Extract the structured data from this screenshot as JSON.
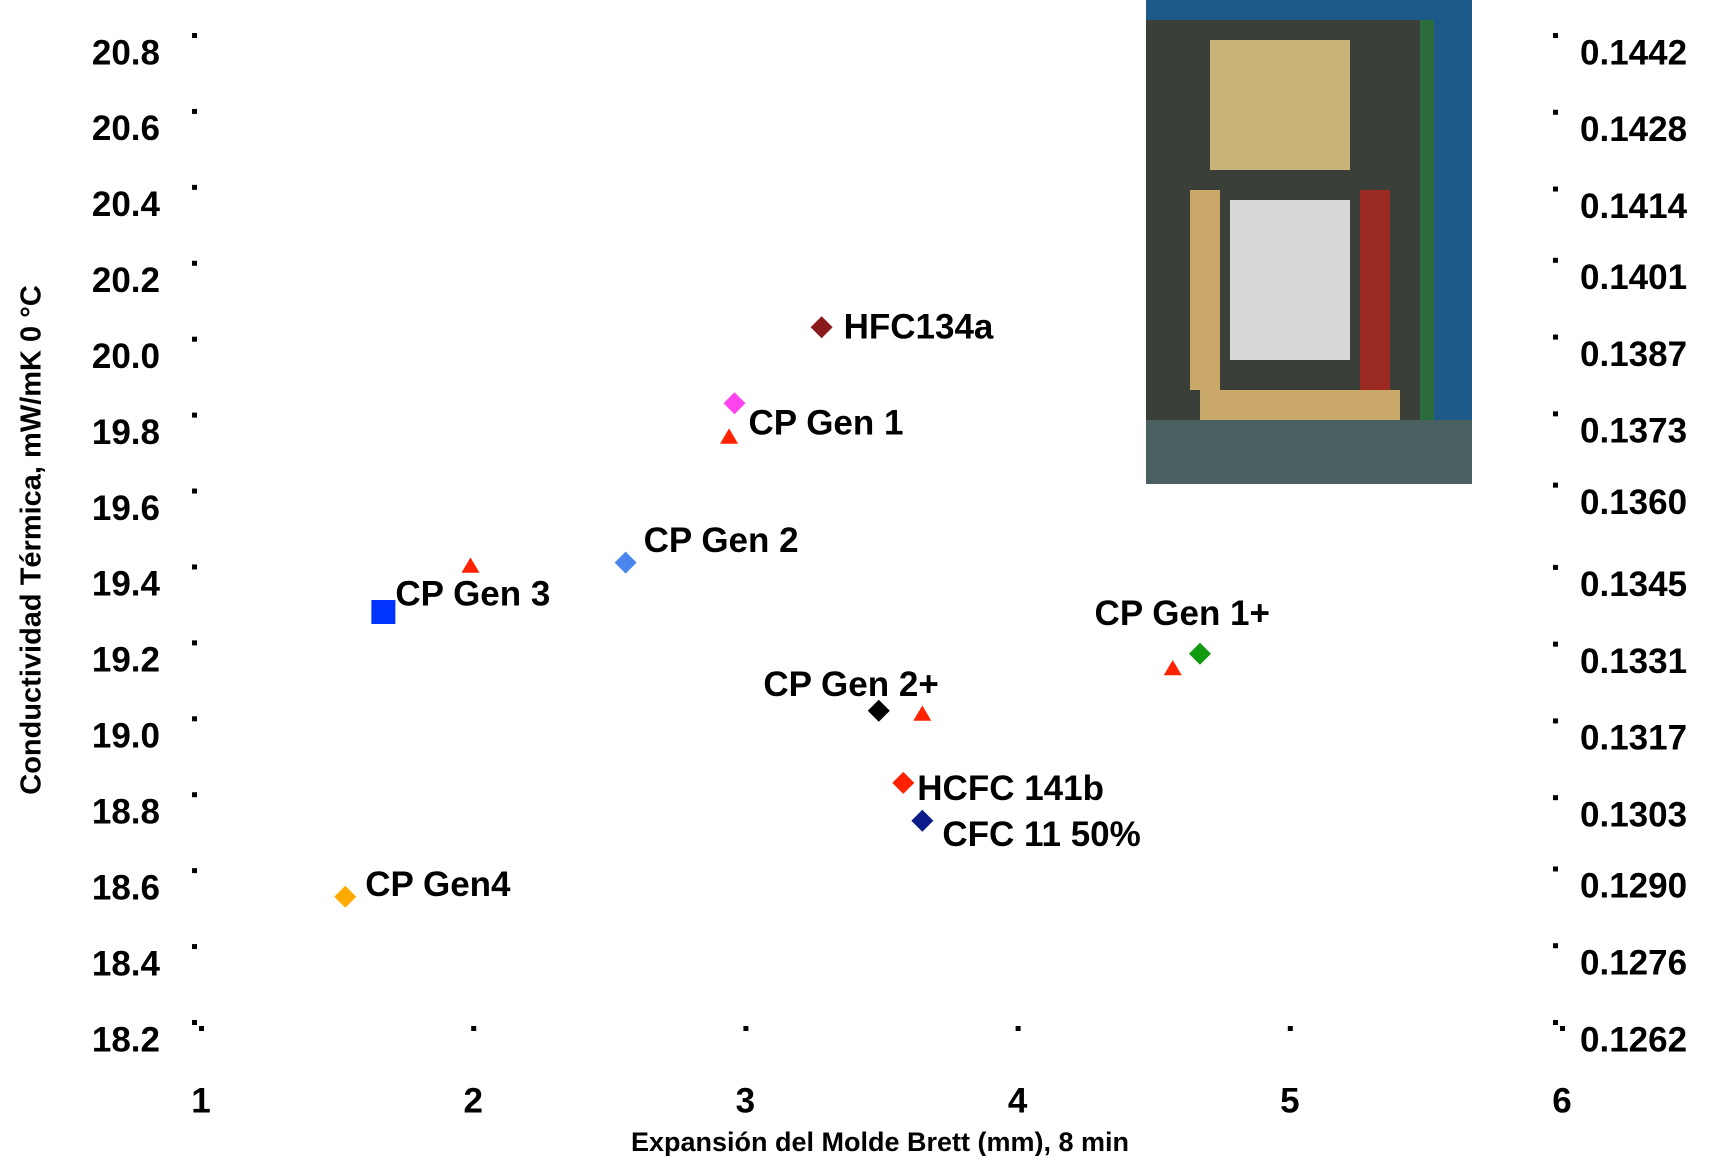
{
  "chart_data": {
    "type": "scatter",
    "xlabel": "Expansión del Molde Brett (mm), 8 min",
    "ylabel": "Conductividad Térmica, mW/mK 0 °C",
    "xlim": [
      1,
      6
    ],
    "xticks": [
      1,
      2,
      3,
      4,
      5,
      6
    ],
    "ylim": [
      18.2,
      20.8
    ],
    "yticks": [
      {
        "value": 18.2,
        "label": "18.2"
      },
      {
        "value": 18.4,
        "label": "18.4"
      },
      {
        "value": 18.6,
        "label": "18.6"
      },
      {
        "value": 18.8,
        "label": "18.8"
      },
      {
        "value": 19.0,
        "label": "19.0"
      },
      {
        "value": 19.2,
        "label": "19.2"
      },
      {
        "value": 19.4,
        "label": "19.4"
      },
      {
        "value": 19.6,
        "label": "19.6"
      },
      {
        "value": 19.8,
        "label": "19.8"
      },
      {
        "value": 20.0,
        "label": "20.0"
      },
      {
        "value": 20.2,
        "label": "20.2"
      },
      {
        "value": 20.4,
        "label": "20.4"
      },
      {
        "value": 20.6,
        "label": "20.6"
      },
      {
        "value": 20.8,
        "label": "20.8"
      }
    ],
    "y2lim": [
      0.1262,
      0.1442
    ],
    "y2ticks": [
      0.1262,
      0.1276,
      {
        "value": 0.129,
        "label": "0.1290"
      },
      0.1303,
      0.1317,
      0.1331,
      0.1345,
      {
        "value": 0.136,
        "label": "0.1360"
      },
      0.1373,
      0.1387,
      0.1401,
      0.1414,
      0.1428,
      0.1442
    ],
    "series": [
      {
        "name": "HFC134a",
        "color": "#8b1a1a",
        "marker": "diamond",
        "x": [
          3.28
        ],
        "y": [
          20.03
        ]
      },
      {
        "name": "CP Gen 1",
        "color": "#ff44ee",
        "marker": "diamond",
        "x": [
          2.96
        ],
        "y": [
          19.83
        ]
      },
      {
        "name": "CP Gen 2",
        "color": "#4a86ee",
        "marker": "diamond",
        "x": [
          2.56
        ],
        "y": [
          19.41
        ]
      },
      {
        "name": "CP Gen 3",
        "color": "#0033ff",
        "marker": "square",
        "x": [
          1.67
        ],
        "y": [
          19.28
        ]
      },
      {
        "name": "CP Gen 1+",
        "color": "#119911",
        "marker": "diamond",
        "x": [
          4.67
        ],
        "y": [
          19.17
        ]
      },
      {
        "name": "CP Gen 2+",
        "color": "#000000",
        "marker": "diamond",
        "x": [
          3.49
        ],
        "y": [
          19.02
        ]
      },
      {
        "name": "HCFC 141b",
        "color": "#ff2200",
        "marker": "diamond",
        "x": [
          3.58
        ],
        "y": [
          18.83
        ]
      },
      {
        "name": "CFC 11 50%",
        "color": "#0a1a88",
        "marker": "diamond",
        "x": [
          3.65
        ],
        "y": [
          18.73
        ]
      },
      {
        "name": "CP Gen4",
        "color": "#ffaa00",
        "marker": "diamond",
        "x": [
          1.53
        ],
        "y": [
          18.53
        ]
      },
      {
        "color": "#ff2200",
        "marker": "triangle",
        "x": [
          1.99,
          3.65,
          2.94,
          4.57
        ],
        "y": [
          19.4,
          19.01,
          19.74,
          19.13
        ]
      }
    ]
  }
}
